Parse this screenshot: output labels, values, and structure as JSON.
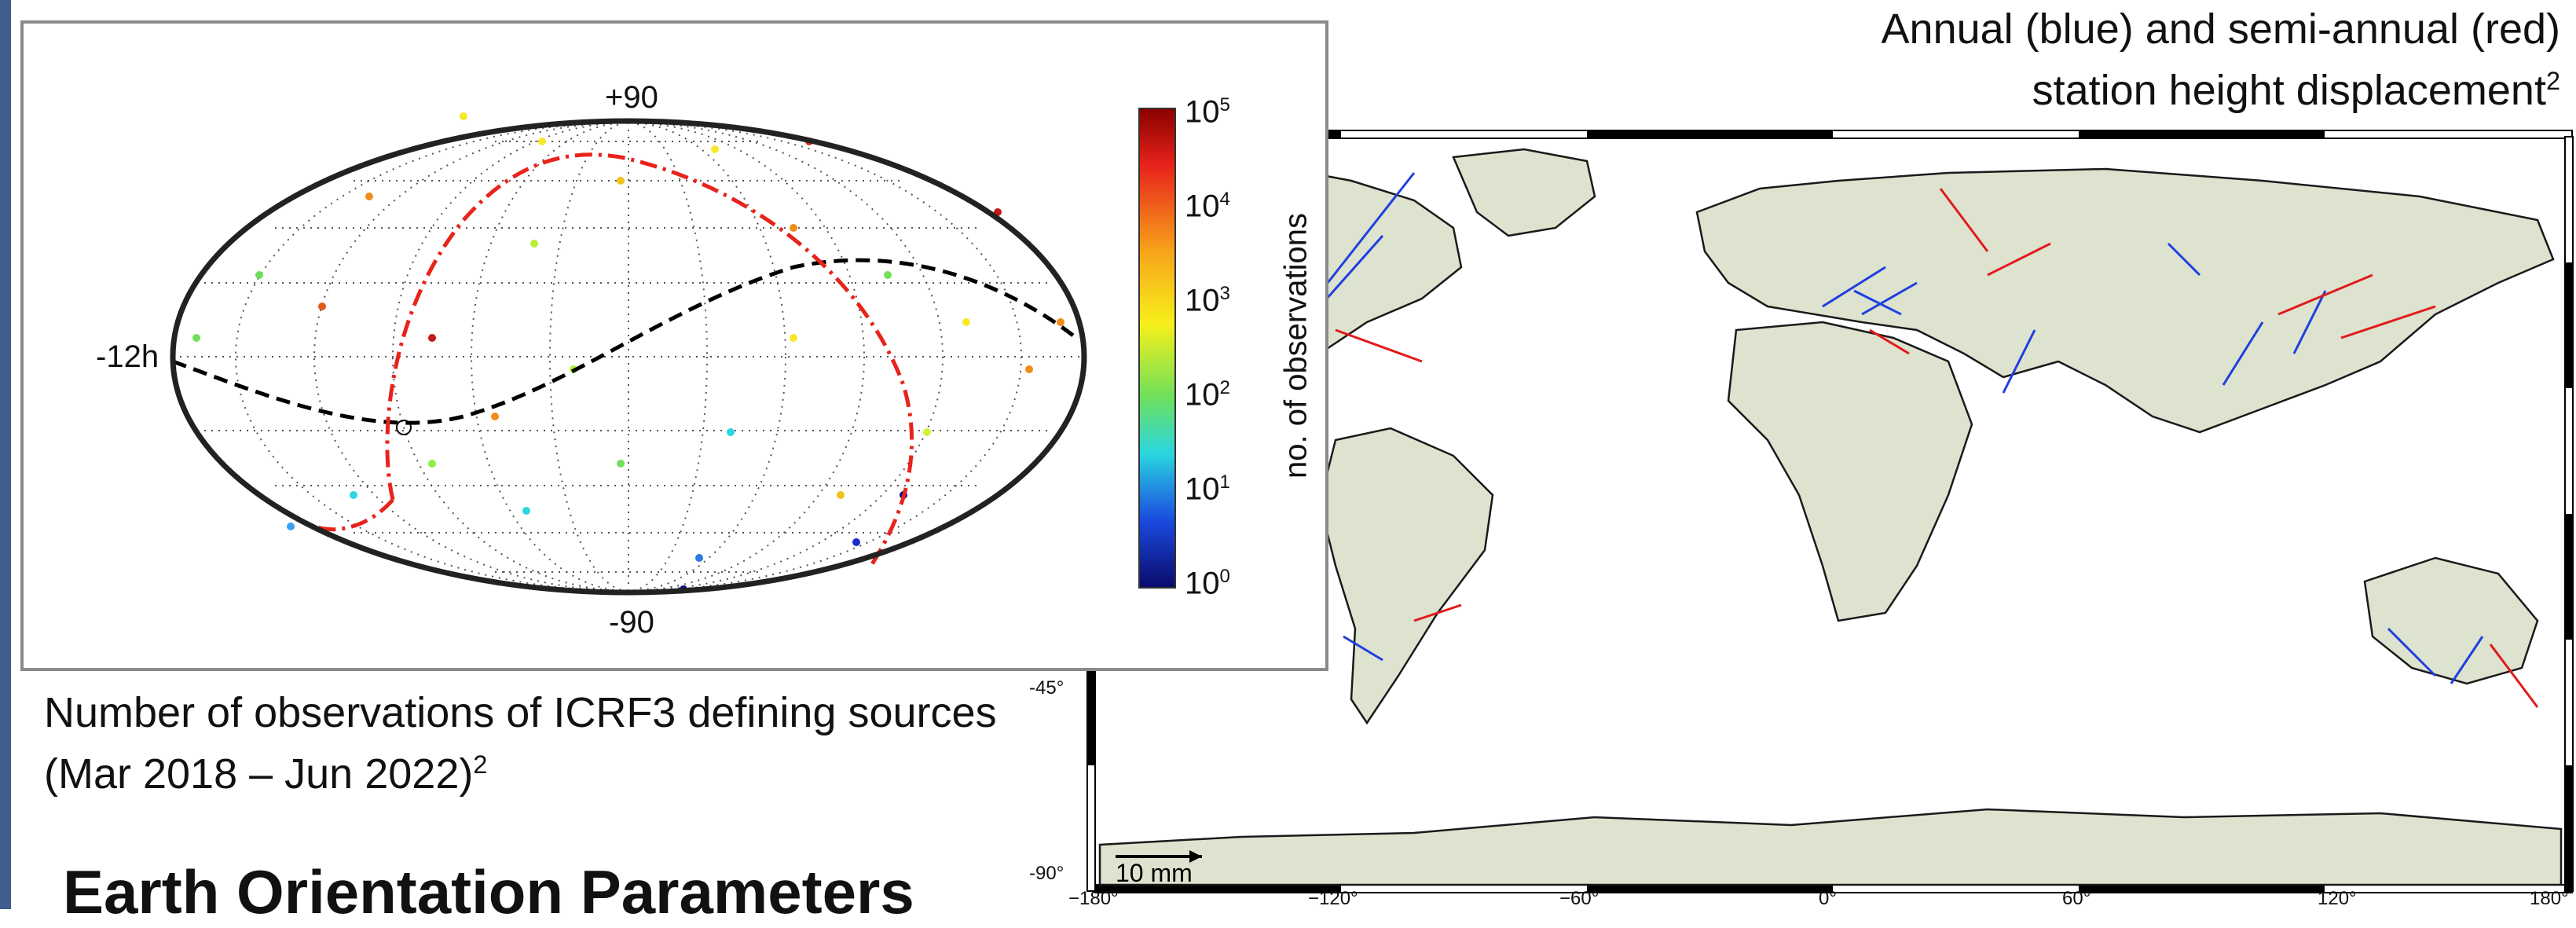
{
  "sky_map": {
    "top_label": "+90",
    "bottom_label": "-90",
    "left_label": "-12h",
    "colorbar": {
      "label": "no. of observations",
      "ticks": [
        {
          "base": "10",
          "exp": "5"
        },
        {
          "base": "10",
          "exp": "4"
        },
        {
          "base": "10",
          "exp": "3"
        },
        {
          "base": "10",
          "exp": "2"
        },
        {
          "base": "10",
          "exp": "1"
        },
        {
          "base": "10",
          "exp": "0"
        }
      ]
    },
    "caption_line1": "Number of observations of ICRF3 defining sources",
    "caption_line2": "(Mar 2018 – Jun 2022)",
    "caption_sup": "2",
    "colors": {
      "galactic_plane": "#e8231b",
      "ecliptic": "#000000",
      "border": "#8a8a8a"
    }
  },
  "world_map": {
    "title_line1": "Annual (blue) and semi-annual (red)",
    "title_line2": "station height displacement",
    "title_sup": "2",
    "scale_label": "10 mm",
    "lat_ticks": [
      "-45°",
      "-90°"
    ],
    "lon_ticks": [
      "−180°",
      "−120°",
      "−60°",
      "0°",
      "60°",
      "120°",
      "180°"
    ],
    "colors": {
      "land": "#dde3cf",
      "annual": "#1f3fe0",
      "semi_annual": "#e11b1b"
    }
  },
  "section": {
    "heading": "Earth Orientation Parameters"
  }
}
